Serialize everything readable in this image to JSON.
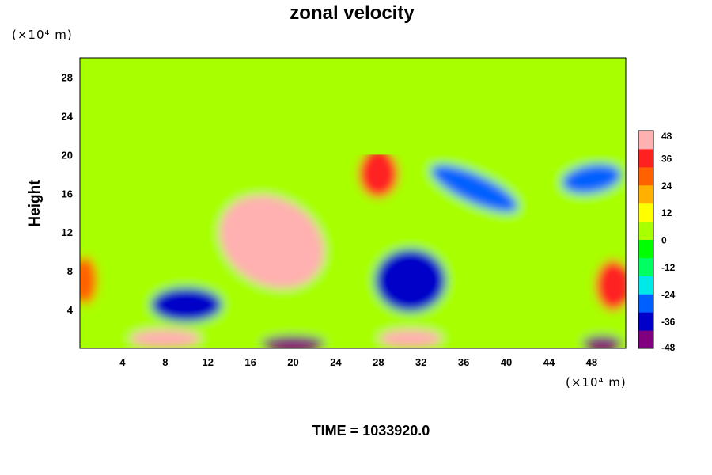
{
  "chart_data": {
    "type": "heatmap",
    "title": "zonal velocity",
    "ylabel": "Height",
    "x_unit_label": "(×10⁴ m)",
    "y_unit_label": "(×10⁴ m)",
    "x_ticks": [
      4,
      8,
      12,
      16,
      20,
      24,
      28,
      32,
      36,
      40,
      44,
      48
    ],
    "y_ticks": [
      4,
      8,
      12,
      16,
      20,
      24,
      28
    ],
    "xlim": [
      0,
      51.2
    ],
    "ylim": [
      0,
      30
    ],
    "colorbar": {
      "ticks": [
        48,
        36,
        24,
        12,
        0,
        -12,
        -24,
        -36,
        -48
      ],
      "range": [
        -48,
        48
      ],
      "palette": [
        "#800080",
        "#0000c8",
        "#0060ff",
        "#00e8e8",
        "#00ff60",
        "#00ff00",
        "#a8ff00",
        "#ffff00",
        "#ffb000",
        "#ff6000",
        "#ff2020",
        "#ffb0b0"
      ]
    },
    "features": [
      {
        "name": "upper layer",
        "region": "z 20-30",
        "value": 0
      },
      {
        "name": "positive core",
        "x": 18,
        "z": 11,
        "value": 45
      },
      {
        "name": "positive lobe",
        "x": 28,
        "z": 18,
        "value": 34
      },
      {
        "name": "negative region",
        "x": 31,
        "z": 7,
        "value": -36
      },
      {
        "name": "negative lobe",
        "x": 10,
        "z": 4.5,
        "value": -34
      },
      {
        "name": "negative upper right",
        "x": 37,
        "z": 16.5,
        "value": -30
      },
      {
        "name": "negative upper far right",
        "x": 48,
        "z": 17.5,
        "value": -32
      },
      {
        "name": "positive right edge",
        "x": 50,
        "z": 6.5,
        "value": 34
      },
      {
        "name": "positive left edge",
        "x": 0.5,
        "z": 7,
        "value": 30
      },
      {
        "name": "surface maximum",
        "x": 8,
        "z": 1,
        "value": 48
      },
      {
        "name": "surface maximum",
        "x": 31,
        "z": 1,
        "value": 48
      },
      {
        "name": "surface minimum",
        "x": 20,
        "z": 0.5,
        "value": -46
      },
      {
        "name": "surface minimum",
        "x": 49,
        "z": 0.5,
        "value": -46
      }
    ]
  },
  "time_label": "TIME = 1033920.0"
}
